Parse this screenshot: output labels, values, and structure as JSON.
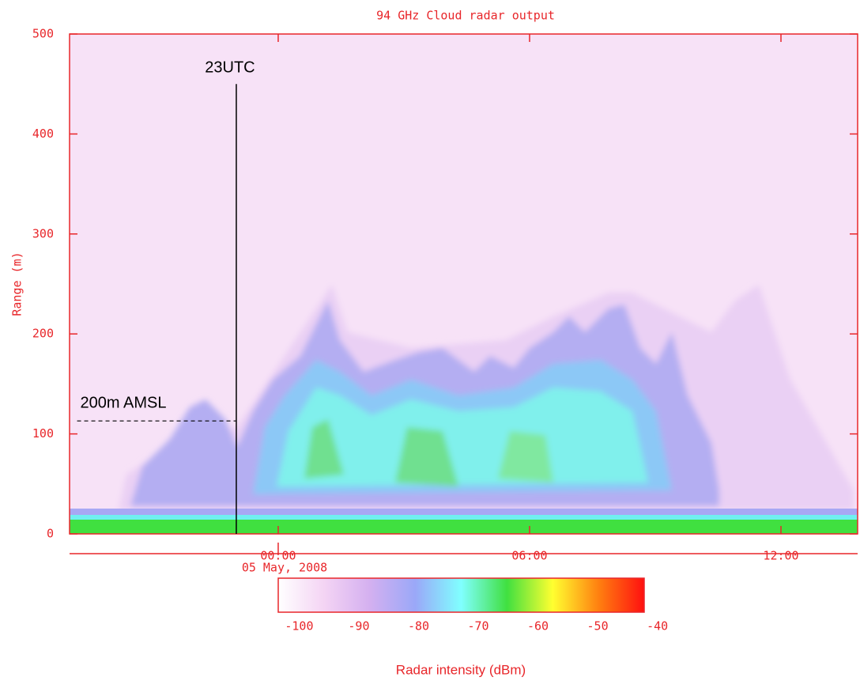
{
  "chart_data": {
    "type": "heatmap",
    "title": "94 GHz Cloud radar output",
    "ylabel": "Range (m)",
    "ylim": [
      0,
      500
    ],
    "yticks": [
      0,
      100,
      200,
      300,
      400,
      500
    ],
    "xlim": [
      -4.98,
      13.83
    ],
    "xticks": [
      {
        "value": 0,
        "label": "00:00"
      },
      {
        "value": 6,
        "label": "06:00"
      },
      {
        "value": 12,
        "label": "12:00"
      }
    ],
    "date_label": "05 May, 2008",
    "axis_color": "#e8262a",
    "colorbar": {
      "label": "Radar intensity (dBm)",
      "lim": [
        -103.5,
        -42.2
      ],
      "ticks": [
        -100,
        -90,
        -80,
        -70,
        -60,
        -50,
        -40
      ],
      "colors": [
        "#ffffff",
        "#f4d4f4",
        "#d4b0f0",
        "#9aa8f8",
        "#80ffff",
        "#40e040",
        "#ffff30",
        "#ff8010",
        "#ff1010"
      ]
    },
    "annotations": [
      {
        "text": "23UTC",
        "x": -1,
        "y": 450
      },
      {
        "text": "200m AMSL",
        "x": [
          -4.8,
          -1
        ],
        "y": 113
      }
    ]
  }
}
